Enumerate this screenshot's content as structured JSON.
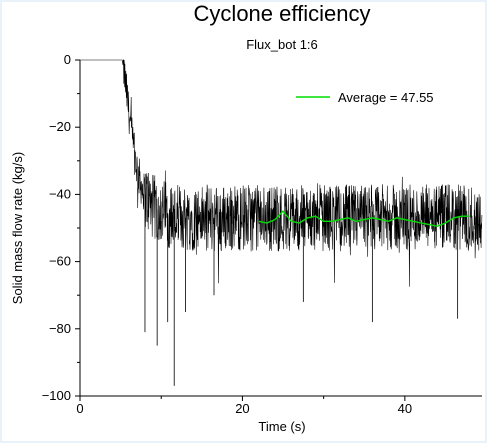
{
  "chart_data": {
    "type": "line",
    "title": "Cyclone efficiency",
    "subtitle": "Flux_bot 1:6",
    "xlabel": "Time (s)",
    "ylabel": "Solid mass flow rate (kg/s)",
    "xlim": [
      0,
      49.5
    ],
    "ylim": [
      -100,
      0
    ],
    "xticks": [
      0,
      20,
      40
    ],
    "yticks": [
      0,
      -20,
      -40,
      -60,
      -80,
      -100
    ],
    "xtick_labels": [
      "0",
      "20",
      "40"
    ],
    "ytick_labels": [
      "0",
      "−20",
      "−40",
      "−60",
      "−80",
      "−100"
    ],
    "legend_position": "top-right",
    "grid": false,
    "series": [
      {
        "color": "#000000",
        "description": "instantaneous noisy signal",
        "x": [
          0,
          5.2,
          5.5,
          6,
          6.5,
          7,
          7.5,
          8,
          8.5,
          9,
          10,
          11,
          12,
          13,
          14,
          16,
          18,
          20,
          22,
          24,
          26,
          28,
          30,
          32,
          34,
          36,
          38,
          40,
          42,
          44,
          46,
          48,
          49.5
        ],
        "y": [
          0,
          0,
          -5,
          -15,
          -25,
          -32,
          -37,
          -40,
          -42,
          -44,
          -45,
          -46,
          -47,
          -47,
          -47,
          -47,
          -47,
          -47,
          -47,
          -47,
          -47,
          -47,
          -47,
          -47,
          -47,
          -47,
          -47,
          -47,
          -47,
          -47,
          -47,
          -47,
          -47
        ],
        "noise_amplitude": 10,
        "spikes": [
          {
            "x": 8.0,
            "y": -81
          },
          {
            "x": 9.5,
            "y": -85
          },
          {
            "x": 10.8,
            "y": -78
          },
          {
            "x": 11.6,
            "y": -97
          },
          {
            "x": 13.0,
            "y": -75
          },
          {
            "x": 16.5,
            "y": -70
          },
          {
            "x": 27.5,
            "y": -72
          },
          {
            "x": 36.0,
            "y": -78
          },
          {
            "x": 46.5,
            "y": -77
          }
        ]
      },
      {
        "name": "Average = 47.55",
        "color": "#00dd00",
        "x": [
          22,
          23,
          24,
          25,
          26,
          27,
          28,
          29,
          30,
          31,
          32,
          33,
          34,
          35,
          36,
          37,
          38,
          39,
          40,
          41,
          42,
          43,
          44,
          45,
          46,
          47,
          48
        ],
        "y": [
          -48,
          -48.5,
          -47.5,
          -45,
          -48,
          -48.5,
          -47,
          -46.5,
          -48,
          -48,
          -47.5,
          -47,
          -48,
          -47.5,
          -47,
          -47.5,
          -48,
          -47,
          -47.5,
          -48,
          -48.5,
          -49,
          -49.5,
          -48.5,
          -47,
          -46.5,
          -46.5
        ]
      }
    ]
  }
}
